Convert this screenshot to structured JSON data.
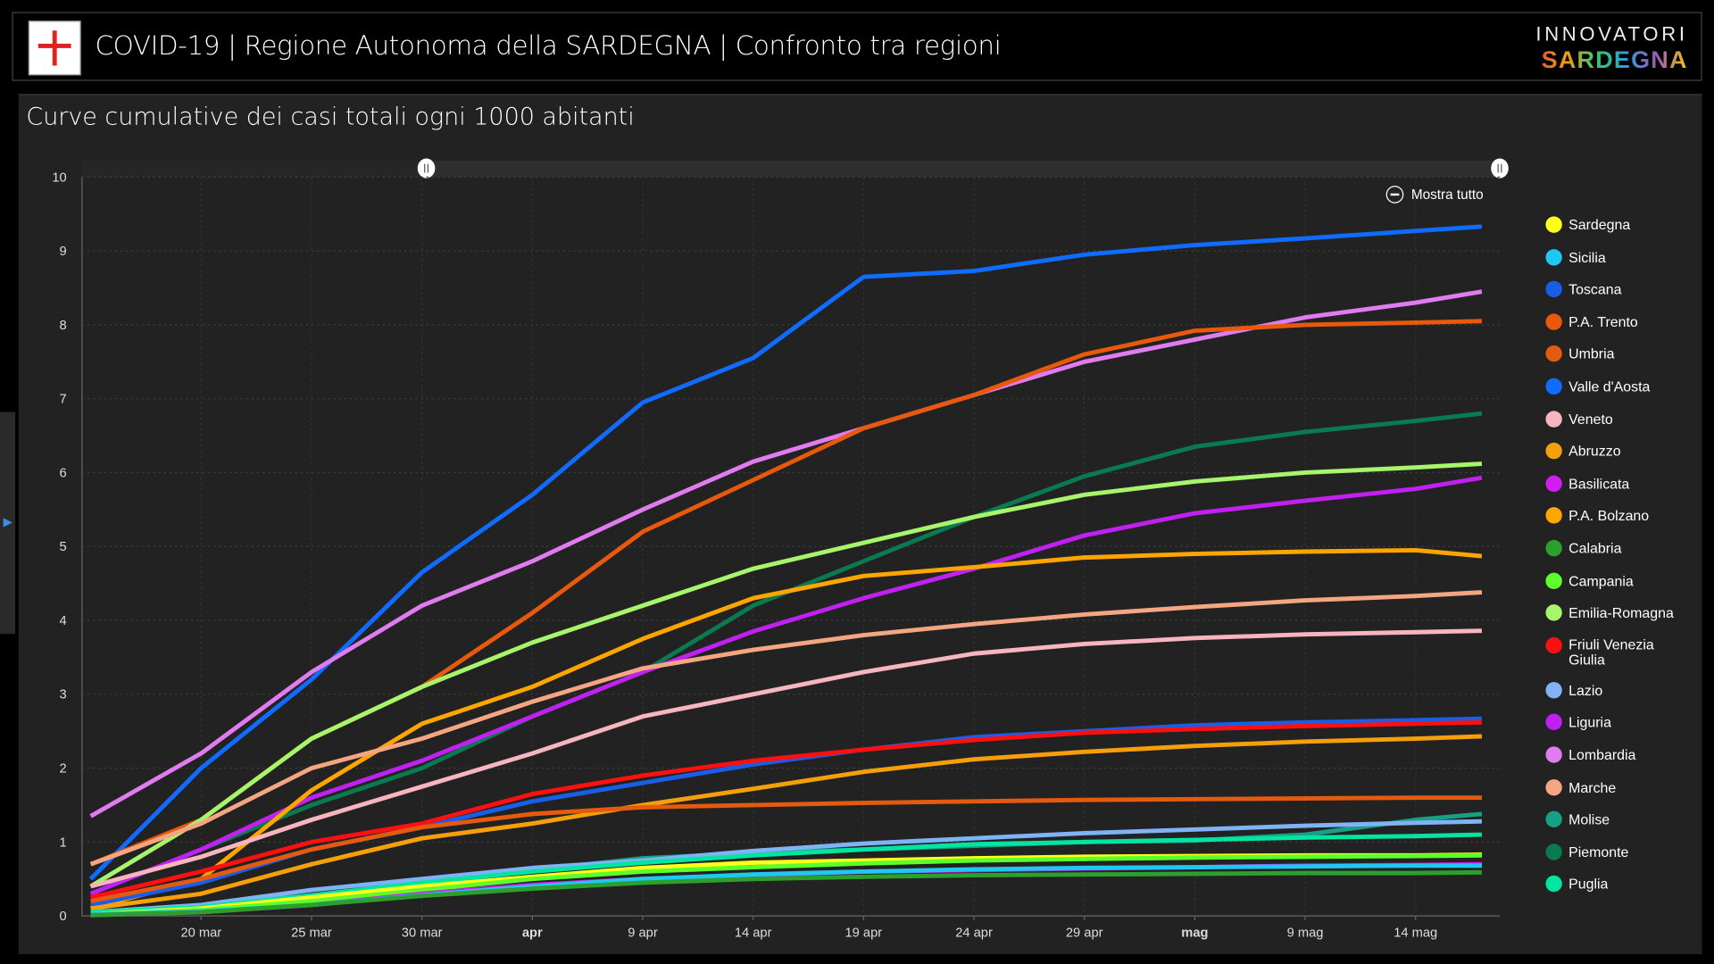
{
  "header": {
    "title": "COVID-19 | Regione Autonoma della SARDEGNA | Confronto tra regioni",
    "brand_top": "INNOVATORI",
    "brand_bottom": "SARDEGNA"
  },
  "panel": {
    "title": "Curve cumulative dei casi totali ogni 1000 abitanti",
    "zoom_label": "Mostra tutto"
  },
  "chart_data": {
    "type": "line",
    "title": "Curve cumulative dei casi totali ogni 1000 abitanti",
    "ylim": [
      0,
      10
    ],
    "grid": true,
    "legend": "right",
    "yticks": [
      "0",
      "1",
      "2",
      "3",
      "4",
      "5",
      "6",
      "7",
      "8",
      "9",
      "10"
    ],
    "xticks": [
      "20 mar",
      "25 mar",
      "30 mar",
      "apr",
      "9 apr",
      "14 apr",
      "19 apr",
      "24 apr",
      "29 apr",
      "mag",
      "9 mag",
      "14 mag"
    ],
    "x": [
      "03-15",
      "03-20",
      "03-25",
      "03-30",
      "04-04",
      "04-09",
      "04-14",
      "04-19",
      "04-24",
      "04-29",
      "05-04",
      "05-09",
      "05-14",
      "05-17"
    ],
    "series": [
      {
        "name": "Sardegna",
        "color": "#ffff1a",
        "values": [
          0.02,
          0.1,
          0.25,
          0.4,
          0.53,
          0.65,
          0.72,
          0.75,
          0.78,
          0.8,
          0.81,
          0.82,
          0.82,
          0.83
        ]
      },
      {
        "name": "Sicilia",
        "color": "#1ec8f0",
        "values": [
          0.02,
          0.06,
          0.15,
          0.28,
          0.4,
          0.5,
          0.56,
          0.6,
          0.63,
          0.65,
          0.66,
          0.67,
          0.68,
          0.68
        ]
      },
      {
        "name": "Toscana",
        "color": "#1a5ee8",
        "values": [
          0.15,
          0.45,
          0.9,
          1.2,
          1.55,
          1.8,
          2.05,
          2.25,
          2.42,
          2.5,
          2.58,
          2.62,
          2.65,
          2.67
        ]
      },
      {
        "name": "P.A. Trento",
        "color": "#e8590c",
        "values": [
          0.7,
          1.3,
          2.4,
          3.1,
          4.1,
          5.2,
          5.9,
          6.6,
          7.05,
          7.6,
          7.92,
          8.0,
          8.03,
          8.05
        ]
      },
      {
        "name": "Umbria",
        "color": "#e35a10",
        "values": [
          0.2,
          0.5,
          0.9,
          1.2,
          1.38,
          1.47,
          1.5,
          1.53,
          1.55,
          1.57,
          1.58,
          1.59,
          1.6,
          1.6
        ]
      },
      {
        "name": "Valle d'Aosta",
        "color": "#0f6cff",
        "values": [
          0.5,
          2.0,
          3.2,
          4.65,
          5.7,
          6.95,
          7.55,
          8.65,
          8.73,
          8.95,
          9.08,
          9.17,
          9.27,
          9.33
        ]
      },
      {
        "name": "Veneto",
        "color": "#f7b6bf",
        "values": [
          0.4,
          0.8,
          1.3,
          1.75,
          2.2,
          2.7,
          3.0,
          3.3,
          3.55,
          3.68,
          3.76,
          3.81,
          3.84,
          3.86
        ]
      },
      {
        "name": "Abruzzo",
        "color": "#f5a00a",
        "values": [
          0.1,
          0.3,
          0.7,
          1.05,
          1.25,
          1.5,
          1.72,
          1.95,
          2.12,
          2.22,
          2.3,
          2.36,
          2.4,
          2.43
        ]
      },
      {
        "name": "Basilicata",
        "color": "#d21cf0",
        "values": [
          0.01,
          0.05,
          0.15,
          0.3,
          0.42,
          0.5,
          0.55,
          0.6,
          0.62,
          0.64,
          0.66,
          0.68,
          0.69,
          0.7
        ]
      },
      {
        "name": "P.A. Bolzano",
        "color": "#ffa500",
        "values": [
          0.1,
          0.5,
          1.7,
          2.6,
          3.1,
          3.75,
          4.3,
          4.6,
          4.72,
          4.85,
          4.9,
          4.93,
          4.95,
          4.87
        ]
      },
      {
        "name": "Calabria",
        "color": "#2ca02c",
        "values": [
          0.01,
          0.05,
          0.15,
          0.27,
          0.37,
          0.45,
          0.5,
          0.53,
          0.55,
          0.56,
          0.57,
          0.58,
          0.58,
          0.59
        ]
      },
      {
        "name": "Campania",
        "color": "#5dff2a",
        "values": [
          0.02,
          0.08,
          0.2,
          0.35,
          0.5,
          0.6,
          0.66,
          0.71,
          0.75,
          0.77,
          0.79,
          0.8,
          0.81,
          0.82
        ]
      },
      {
        "name": "Emilia-Romagna",
        "color": "#a6f56a",
        "values": [
          0.4,
          1.3,
          2.4,
          3.1,
          3.7,
          4.2,
          4.7,
          5.05,
          5.4,
          5.7,
          5.88,
          6.0,
          6.07,
          6.12
        ]
      },
      {
        "name": "Friuli Venezia Giulia",
        "color": "#ff1010",
        "values": [
          0.25,
          0.6,
          1.0,
          1.25,
          1.65,
          1.9,
          2.1,
          2.25,
          2.38,
          2.48,
          2.53,
          2.57,
          2.6,
          2.62
        ]
      },
      {
        "name": "Lazio",
        "color": "#7fb3f5",
        "values": [
          0.05,
          0.15,
          0.35,
          0.5,
          0.65,
          0.75,
          0.88,
          0.98,
          1.05,
          1.12,
          1.17,
          1.22,
          1.26,
          1.28
        ]
      },
      {
        "name": "Liguria",
        "color": "#c020f0",
        "values": [
          0.3,
          0.9,
          1.6,
          2.1,
          2.7,
          3.3,
          3.85,
          4.3,
          4.7,
          5.15,
          5.45,
          5.62,
          5.78,
          5.93
        ]
      },
      {
        "name": "Lombardia",
        "color": "#e07cf0",
        "values": [
          1.35,
          2.2,
          3.3,
          4.2,
          4.8,
          5.5,
          6.15,
          6.6,
          7.05,
          7.5,
          7.8,
          8.1,
          8.3,
          8.45
        ]
      },
      {
        "name": "Marche",
        "color": "#f4a582",
        "values": [
          0.7,
          1.25,
          2.0,
          2.4,
          2.9,
          3.35,
          3.6,
          3.8,
          3.95,
          4.08,
          4.18,
          4.27,
          4.33,
          4.38
        ]
      },
      {
        "name": "Molise",
        "color": "#16a085",
        "values": [
          0.05,
          0.1,
          0.25,
          0.45,
          0.62,
          0.78,
          0.85,
          0.9,
          0.95,
          1.0,
          1.02,
          1.1,
          1.3,
          1.38
        ]
      },
      {
        "name": "Piemonte",
        "color": "#0a7a50",
        "values": [
          0.3,
          0.9,
          1.5,
          2.0,
          2.7,
          3.3,
          4.2,
          4.8,
          5.4,
          5.95,
          6.35,
          6.55,
          6.7,
          6.8
        ]
      },
      {
        "name": "Puglia",
        "color": "#00e5a0",
        "values": [
          0.05,
          0.12,
          0.28,
          0.45,
          0.6,
          0.72,
          0.82,
          0.9,
          0.97,
          1.0,
          1.03,
          1.06,
          1.08,
          1.1
        ]
      }
    ]
  }
}
